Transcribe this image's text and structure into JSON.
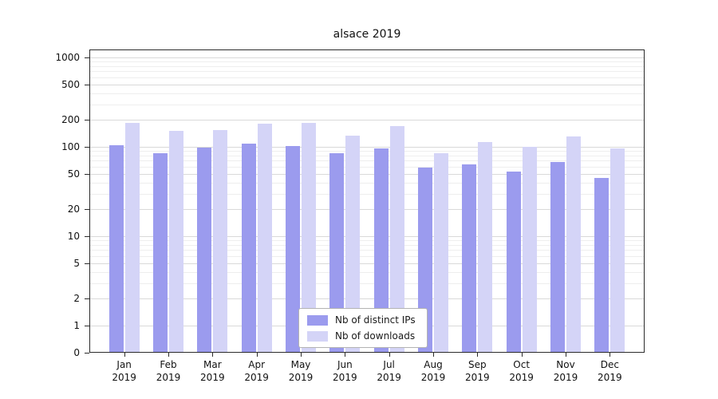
{
  "chart_data": {
    "type": "bar",
    "title": "alsace 2019",
    "categories": [
      "Jan 2019",
      "Feb 2019",
      "Mar 2019",
      "Apr 2019",
      "May 2019",
      "Jun 2019",
      "Jul 2019",
      "Aug 2019",
      "Sep 2019",
      "Oct 2019",
      "Nov 2019",
      "Dec 2019"
    ],
    "series": [
      {
        "name": "Nb of distinct IPs",
        "color": "#9b9bee",
        "values": [
          105,
          85,
          97,
          108,
          102,
          85,
          96,
          58,
          64,
          53,
          68,
          45
        ]
      },
      {
        "name": "Nb of downloads",
        "color": "#d4d4f7",
        "values": [
          185,
          152,
          153,
          180,
          185,
          132,
          170,
          85,
          112,
          100,
          131,
          96
        ]
      }
    ],
    "yscale": "symlog",
    "y_ticks": [
      0,
      1,
      2,
      5,
      10,
      20,
      50,
      100,
      200,
      500,
      1000
    ],
    "ylim": [
      0,
      1000
    ],
    "xlabel": "",
    "ylabel": "",
    "grid": true,
    "legend_position": "lower center"
  }
}
